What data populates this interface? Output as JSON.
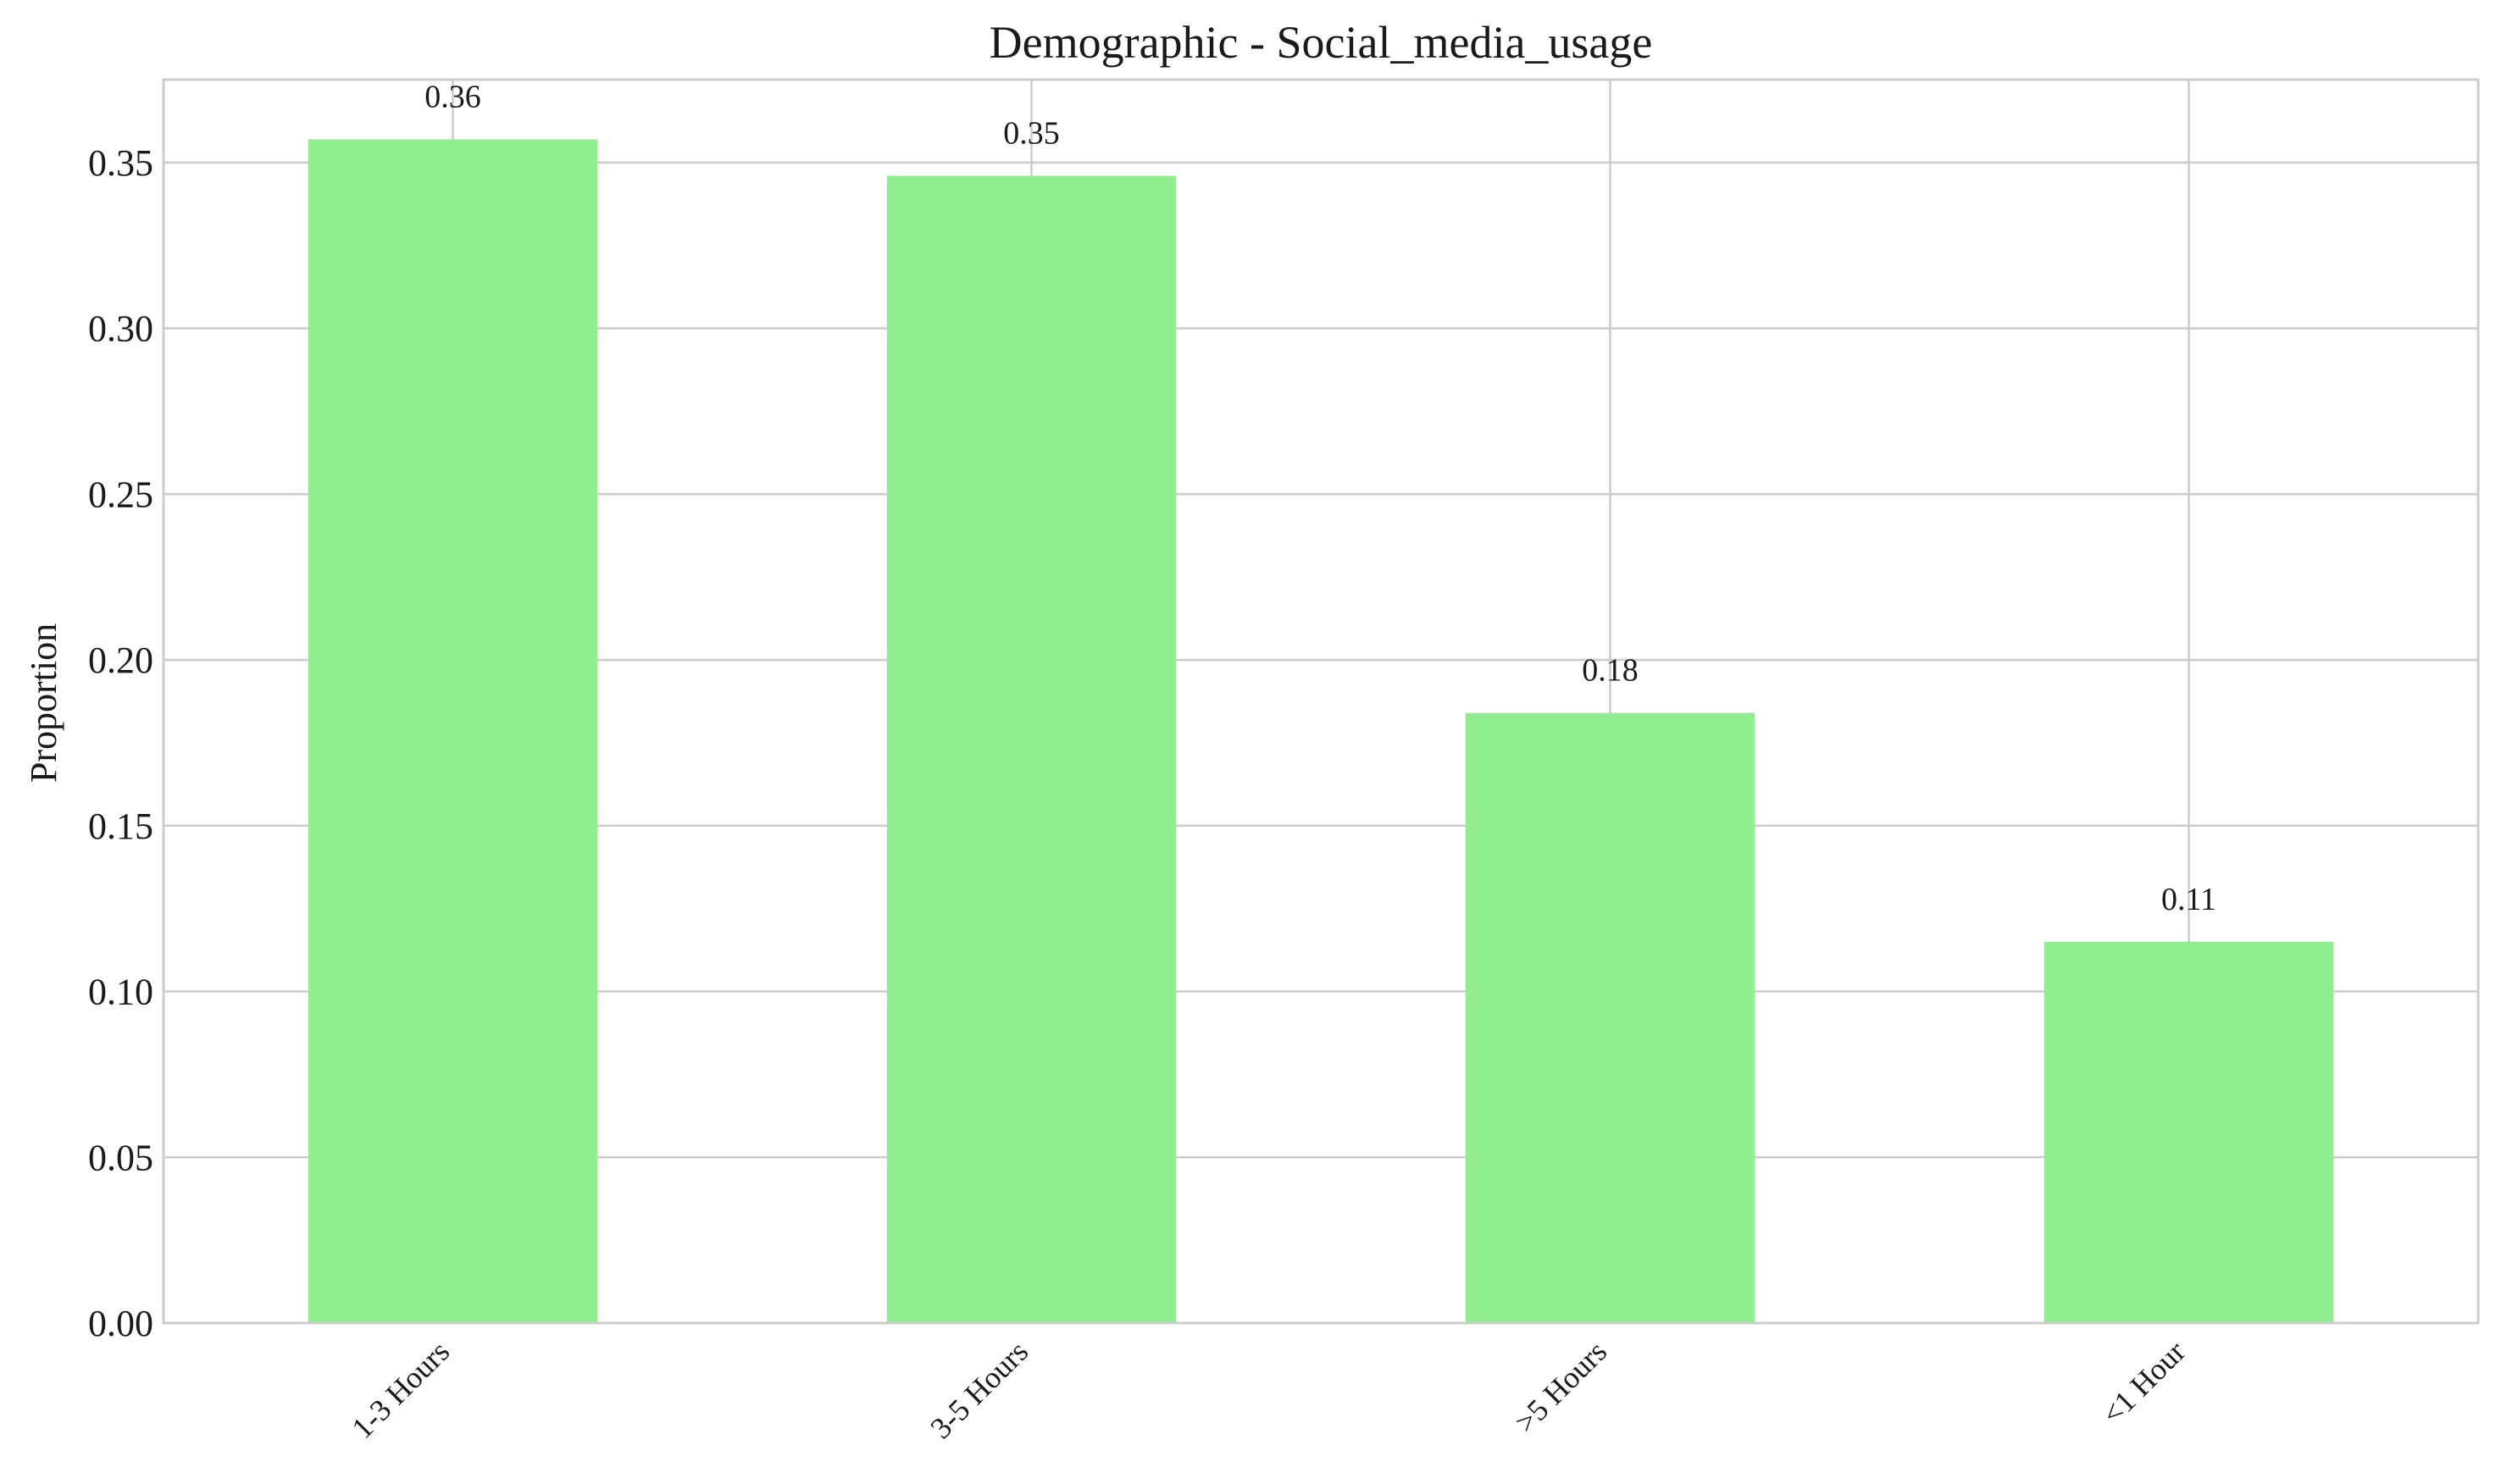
{
  "chart_data": {
    "type": "bar",
    "title": "Demographic - Social_media_usage",
    "xlabel": "",
    "ylabel": "Proportion",
    "categories": [
      "1-3 Hours",
      "3-5 Hours",
      ">5 Hours",
      "<1 Hour"
    ],
    "values": [
      0.357,
      0.346,
      0.184,
      0.115
    ],
    "data_labels": [
      "0.36",
      "0.35",
      "0.18",
      "0.11"
    ],
    "ylim": [
      0,
      0.375
    ],
    "yticks": [
      0.0,
      0.05,
      0.1,
      0.15,
      0.2,
      0.25,
      0.3,
      0.35
    ],
    "ytick_labels": [
      "0.00",
      "0.05",
      "0.10",
      "0.15",
      "0.20",
      "0.25",
      "0.30",
      "0.35"
    ],
    "grid": true,
    "legend": "none",
    "colors": {
      "bar": "#90ee90",
      "grid": "#cccccc",
      "frame": "#cccccc",
      "text": "#1a1a1a"
    }
  }
}
